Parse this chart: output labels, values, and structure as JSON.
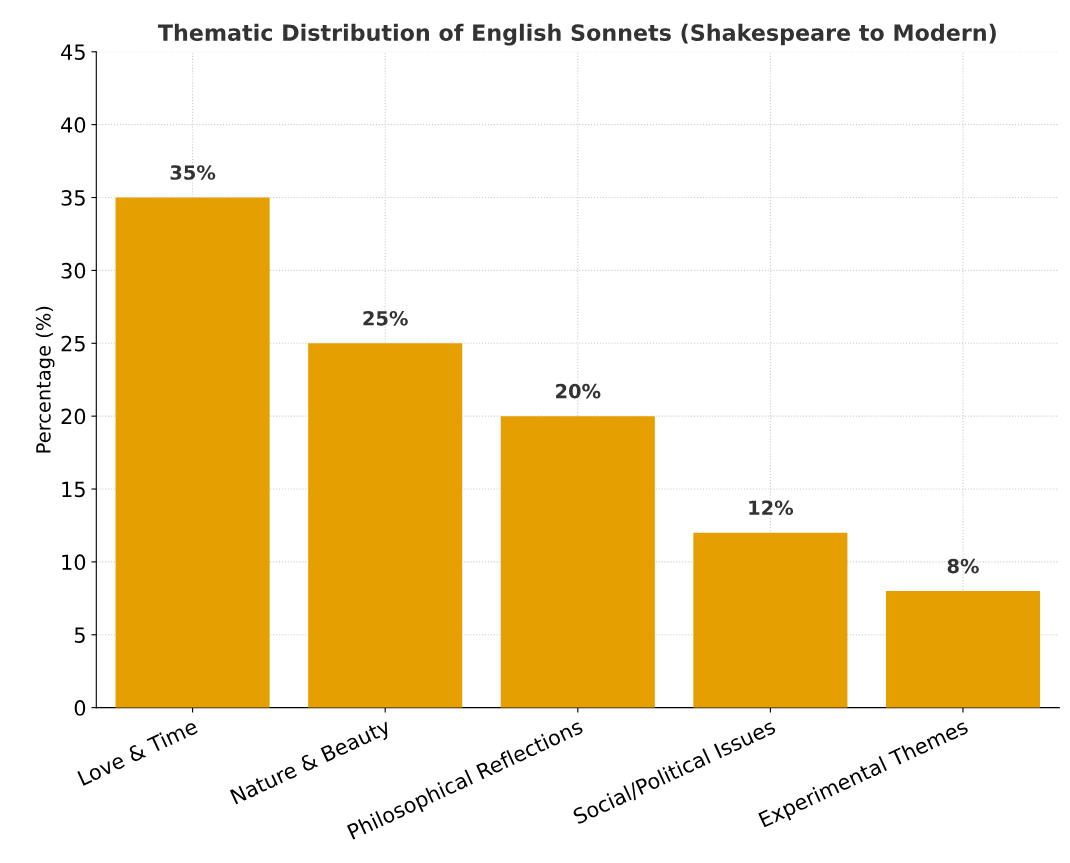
{
  "chart_data": {
    "type": "bar",
    "title": "Thematic Distribution of English Sonnets (Shakespeare to Modern)",
    "ylabel": "Percentage (%)",
    "categories": [
      "Love & Time",
      "Nature & Beauty",
      "Philosophical Reflections",
      "Social/Political Issues",
      "Experimental Themes"
    ],
    "values": [
      35,
      25,
      20,
      12,
      8
    ],
    "color": "#e69f00",
    "value_labels": [
      "35%",
      "25%",
      "20%",
      "12%",
      "8%"
    ],
    "ylim": [
      0,
      45
    ],
    "yticks": [
      0,
      5,
      10,
      15,
      20,
      25,
      30,
      35,
      40,
      45
    ],
    "grid": true,
    "legend": false
  }
}
